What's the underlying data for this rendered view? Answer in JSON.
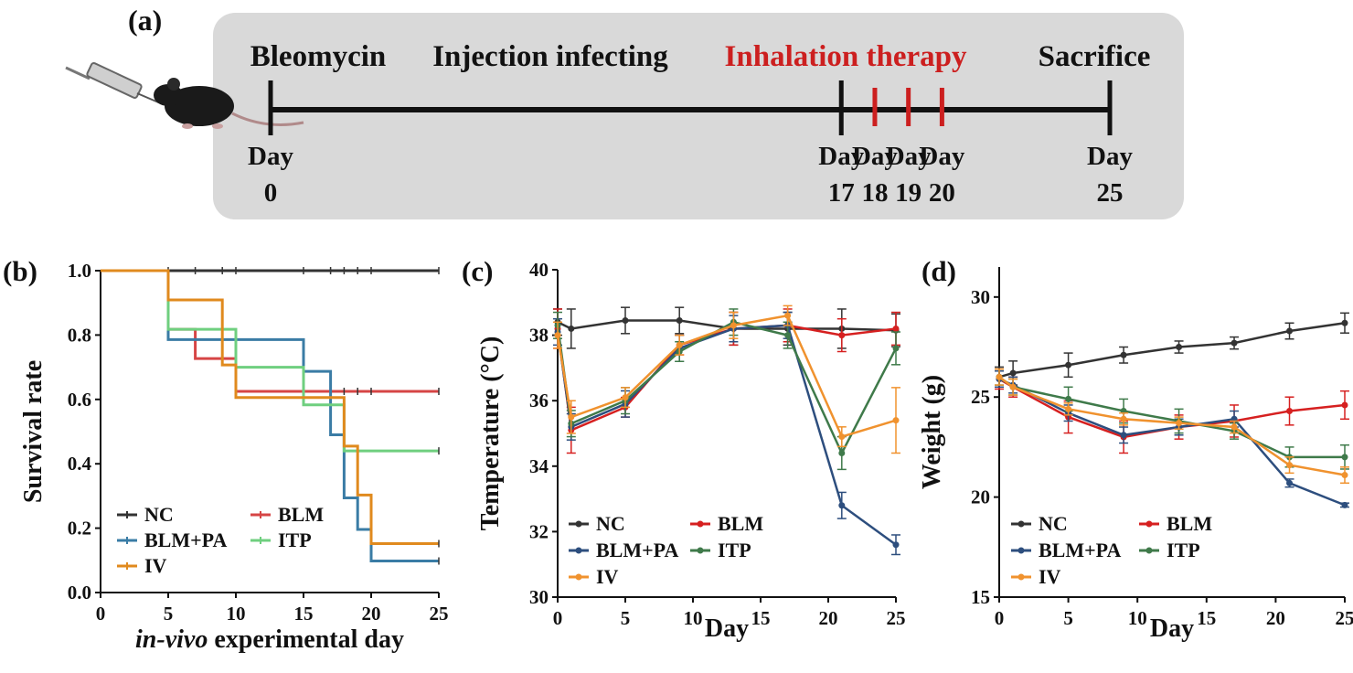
{
  "panel_a": {
    "label": "(a)",
    "events": [
      {
        "name": "Bleomycin",
        "day": 0,
        "color": "#111111"
      },
      {
        "name": "Injection infecting",
        "day": 17,
        "color": "#111111"
      },
      {
        "name": "Inhalation therapy",
        "day": 19,
        "color": "#cc1f1f"
      },
      {
        "name": "Sacrifice",
        "day": 25,
        "color": "#111111"
      }
    ],
    "ticks": [
      {
        "top": "Day",
        "bottom": "0",
        "day": 0,
        "color": "#111111"
      },
      {
        "top": "Day",
        "bottom": "17",
        "day": 17,
        "color": "#111111"
      },
      {
        "top": "Day",
        "bottom": "18",
        "day": 18,
        "color": "#cc1f1f"
      },
      {
        "top": "Day",
        "bottom": "19",
        "day": 19,
        "color": "#cc1f1f"
      },
      {
        "top": "Day",
        "bottom": "20",
        "day": 20,
        "color": "#cc1f1f"
      },
      {
        "top": "Day",
        "bottom": "25",
        "day": 25,
        "color": "#111111"
      }
    ]
  },
  "chart_data": [
    {
      "panel": "(b)",
      "type": "line",
      "subtype": "step",
      "xlabel_italic": "in-vivo",
      "xlabel_rest": " experimental day",
      "ylabel": "Survival rate",
      "xlim": [
        0,
        25
      ],
      "ylim": [
        0,
        1
      ],
      "xticks": [
        "0",
        "5",
        "10",
        "15",
        "20",
        "25"
      ],
      "yticks": [
        "0.0",
        "0.2",
        "0.4",
        "0.6",
        "0.8",
        "1.0"
      ],
      "legend": [
        "NC",
        "BLM",
        "BLM+PA",
        "ITP",
        "IV"
      ],
      "series": [
        {
          "name": "NC",
          "color": "#333333",
          "points": [
            [
              0,
              1
            ],
            [
              25,
              1
            ]
          ],
          "censors": [
            5,
            7,
            9,
            10,
            15,
            17,
            18,
            19,
            20,
            25
          ]
        },
        {
          "name": "BLM",
          "color": "#d64545",
          "points": [
            [
              0,
              1
            ],
            [
              5,
              1
            ],
            [
              5,
              0.818
            ],
            [
              7,
              0.818
            ],
            [
              7,
              0.727
            ],
            [
              10,
              0.727
            ],
            [
              10,
              0.625
            ],
            [
              25,
              0.625
            ]
          ],
          "censors": [
            15,
            17,
            18,
            19,
            20,
            25
          ]
        },
        {
          "name": "BLM+PA",
          "color": "#3a7ca5",
          "points": [
            [
              0,
              1
            ],
            [
              5,
              1
            ],
            [
              5,
              0.786
            ],
            [
              15,
              0.786
            ],
            [
              15,
              0.687
            ],
            [
              17,
              0.687
            ],
            [
              17,
              0.49
            ],
            [
              18,
              0.49
            ],
            [
              18,
              0.294
            ],
            [
              19,
              0.294
            ],
            [
              19,
              0.196
            ],
            [
              20,
              0.196
            ],
            [
              20,
              0.098
            ],
            [
              25,
              0.098
            ]
          ],
          "censors": [
            25
          ]
        },
        {
          "name": "ITP",
          "color": "#6fcf7f",
          "points": [
            [
              0,
              1
            ],
            [
              5,
              1
            ],
            [
              5,
              0.818
            ],
            [
              10,
              0.818
            ],
            [
              10,
              0.7
            ],
            [
              15,
              0.7
            ],
            [
              15,
              0.583
            ],
            [
              18,
              0.583
            ],
            [
              18,
              0.44
            ],
            [
              25,
              0.44
            ]
          ],
          "censors": [
            25
          ]
        },
        {
          "name": "IV",
          "color": "#e08a1e",
          "points": [
            [
              0,
              1
            ],
            [
              5,
              1
            ],
            [
              5,
              0.909
            ],
            [
              9,
              0.909
            ],
            [
              9,
              0.707
            ],
            [
              10,
              0.707
            ],
            [
              10,
              0.606
            ],
            [
              18,
              0.606
            ],
            [
              18,
              0.455
            ],
            [
              19,
              0.455
            ],
            [
              19,
              0.303
            ],
            [
              20,
              0.303
            ],
            [
              20,
              0.152
            ],
            [
              25,
              0.152
            ]
          ],
          "censors": [
            25
          ]
        }
      ]
    },
    {
      "panel": "(c)",
      "type": "line",
      "xlabel": "Day",
      "ylabel": "Temperature (°C)",
      "xlim": [
        0,
        25
      ],
      "ylim": [
        30,
        40
      ],
      "xticks": [
        "0",
        "5",
        "10",
        "15",
        "20",
        "25"
      ],
      "yticks": [
        "30",
        "32",
        "34",
        "36",
        "38",
        "40"
      ],
      "legend": [
        "NC",
        "BLM",
        "BLM+PA",
        "ITP",
        "IV"
      ],
      "series": [
        {
          "name": "NC",
          "color": "#333333",
          "x": [
            0,
            1,
            5,
            9,
            13,
            17,
            21,
            25
          ],
          "y": [
            38.4,
            38.2,
            38.45,
            38.45,
            38.2,
            38.2,
            38.2,
            38.15
          ],
          "err": [
            0.4,
            0.6,
            0.4,
            0.4,
            0.5,
            0.5,
            0.6,
            0.5
          ]
        },
        {
          "name": "BLM",
          "color": "#d62020",
          "x": [
            0,
            1,
            5,
            9,
            13,
            17,
            21,
            25
          ],
          "y": [
            38.2,
            35.1,
            35.8,
            37.7,
            38.2,
            38.3,
            38.0,
            38.2
          ],
          "err": [
            0.6,
            0.7,
            0.3,
            0.3,
            0.5,
            0.5,
            0.5,
            0.5
          ]
        },
        {
          "name": "BLM+PA",
          "color": "#2d4e7e",
          "x": [
            0,
            1,
            5,
            9,
            13,
            17,
            21,
            25
          ],
          "y": [
            38.1,
            35.2,
            35.9,
            37.6,
            38.2,
            38.3,
            32.8,
            31.6
          ],
          "err": [
            0.4,
            0.4,
            0.4,
            0.4,
            0.4,
            0.4,
            0.4,
            0.3
          ]
        },
        {
          "name": "ITP",
          "color": "#3f7a4a",
          "x": [
            0,
            1,
            5,
            9,
            13,
            17,
            21,
            25
          ],
          "y": [
            38.3,
            35.3,
            36.0,
            37.5,
            38.4,
            38.0,
            34.4,
            37.6
          ],
          "err": [
            0.4,
            0.4,
            0.4,
            0.3,
            0.4,
            0.4,
            0.5,
            0.5
          ]
        },
        {
          "name": "IV",
          "color": "#f0922e",
          "x": [
            0,
            1,
            5,
            9,
            13,
            17,
            21,
            25
          ],
          "y": [
            38.0,
            35.5,
            36.1,
            37.7,
            38.3,
            38.6,
            34.9,
            35.4
          ],
          "err": [
            0.4,
            0.5,
            0.3,
            0.3,
            0.4,
            0.3,
            0.3,
            1.0
          ]
        }
      ]
    },
    {
      "panel": "(d)",
      "type": "line",
      "xlabel": "Day",
      "ylabel": "Weight (g)",
      "xlim": [
        0,
        25
      ],
      "ylim": [
        15,
        31.5
      ],
      "xticks": [
        "0",
        "5",
        "10",
        "15",
        "20",
        "25"
      ],
      "yticks": [
        "15",
        "20",
        "25",
        "30"
      ],
      "legend": [
        "NC",
        "BLM",
        "BLM+PA",
        "ITP",
        "IV"
      ],
      "series": [
        {
          "name": "NC",
          "color": "#333333",
          "x": [
            0,
            1,
            5,
            9,
            13,
            17,
            21,
            25
          ],
          "y": [
            26.0,
            26.2,
            26.6,
            27.1,
            27.5,
            27.7,
            28.3,
            28.7
          ],
          "err": [
            0.5,
            0.6,
            0.6,
            0.4,
            0.3,
            0.3,
            0.4,
            0.5
          ]
        },
        {
          "name": "BLM",
          "color": "#d62020",
          "x": [
            0,
            1,
            5,
            9,
            13,
            17,
            21,
            25
          ],
          "y": [
            25.9,
            25.5,
            24.0,
            23.0,
            23.5,
            23.8,
            24.3,
            24.6
          ],
          "err": [
            0.5,
            0.5,
            0.8,
            0.8,
            0.6,
            0.8,
            0.7,
            0.7
          ]
        },
        {
          "name": "BLM+PA",
          "color": "#2d4e7e",
          "x": [
            0,
            1,
            5,
            9,
            13,
            17,
            21,
            25
          ],
          "y": [
            25.9,
            25.6,
            24.2,
            23.1,
            23.5,
            23.9,
            20.7,
            19.6
          ],
          "err": [
            0.4,
            0.4,
            0.4,
            0.4,
            0.4,
            0.4,
            0.2,
            0.1
          ]
        },
        {
          "name": "ITP",
          "color": "#3f7a4a",
          "x": [
            0,
            1,
            5,
            9,
            13,
            17,
            21,
            25
          ],
          "y": [
            26.0,
            25.5,
            24.9,
            24.3,
            23.8,
            23.3,
            22.0,
            22.0
          ],
          "err": [
            0.4,
            0.4,
            0.6,
            0.6,
            0.6,
            0.4,
            0.5,
            0.6
          ]
        },
        {
          "name": "IV",
          "color": "#f0922e",
          "x": [
            0,
            1,
            5,
            9,
            13,
            17,
            21,
            25
          ],
          "y": [
            26.0,
            25.5,
            24.4,
            23.9,
            23.7,
            23.5,
            21.6,
            21.1
          ],
          "err": [
            0.4,
            0.4,
            0.3,
            0.3,
            0.3,
            0.3,
            0.4,
            0.4
          ]
        }
      ]
    }
  ]
}
